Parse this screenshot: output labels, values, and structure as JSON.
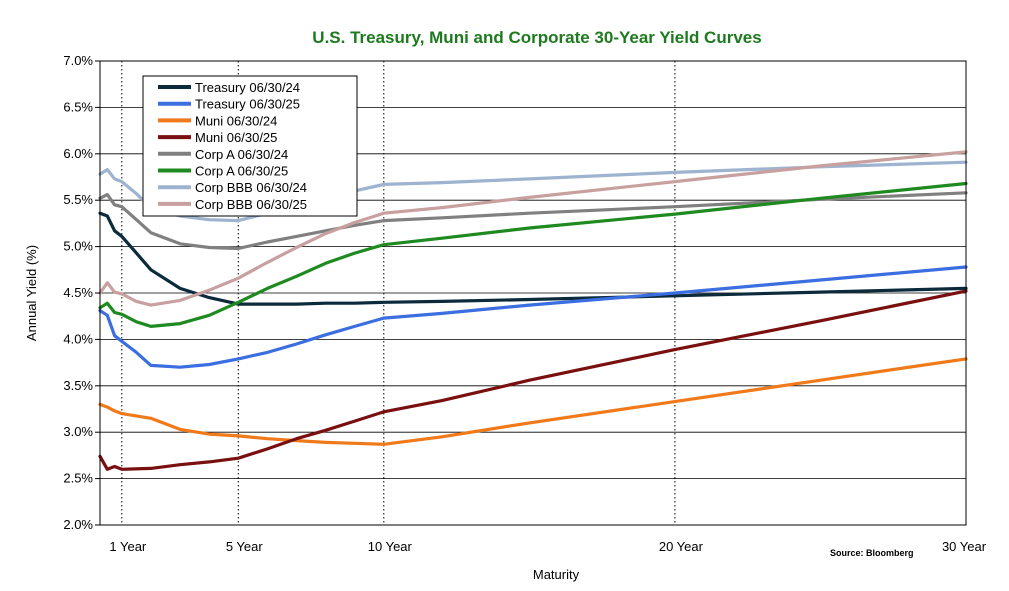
{
  "chart_data": {
    "type": "line",
    "title": "U.S. Treasury, Muni and Corporate 30-Year Yield Curves",
    "xlabel": "Maturity",
    "ylabel": "Annual Yield (%)",
    "source": "Source: Bloomberg",
    "xlim": [
      0.25,
      30
    ],
    "ylim": [
      2.0,
      7.0
    ],
    "x_ticks": [
      {
        "value": 1,
        "label": "1 Year"
      },
      {
        "value": 5,
        "label": "5 Year"
      },
      {
        "value": 10,
        "label": "10 Year"
      },
      {
        "value": 20,
        "label": "20 Year"
      },
      {
        "value": 30,
        "label": "30 Year"
      }
    ],
    "y_ticks": [
      {
        "value": 2.0,
        "label": "2.0%"
      },
      {
        "value": 2.5,
        "label": "2.5%"
      },
      {
        "value": 3.0,
        "label": "3.0%"
      },
      {
        "value": 3.5,
        "label": "3.5%"
      },
      {
        "value": 4.0,
        "label": "4.0%"
      },
      {
        "value": 4.5,
        "label": "4.5%"
      },
      {
        "value": 5.0,
        "label": "5.0%"
      },
      {
        "value": 5.5,
        "label": "5.5%"
      },
      {
        "value": 6.0,
        "label": "6.0%"
      },
      {
        "value": 6.5,
        "label": "6.5%"
      },
      {
        "value": 7.0,
        "label": "7.0%"
      }
    ],
    "vertical_gridlines_at": [
      1,
      5,
      10,
      20
    ],
    "legend_position": "top-left",
    "series": [
      {
        "name": "Treasury 06/30/24",
        "color": "#0b2a3c",
        "x": [
          0.25,
          0.5,
          0.75,
          1,
          1.5,
          2,
          3,
          4,
          5,
          6,
          7,
          8,
          9,
          10,
          12,
          15,
          20,
          25,
          30
        ],
        "y": [
          5.36,
          5.33,
          5.17,
          5.11,
          4.93,
          4.75,
          4.55,
          4.45,
          4.38,
          4.38,
          4.38,
          4.39,
          4.39,
          4.4,
          4.41,
          4.43,
          4.47,
          4.51,
          4.55
        ]
      },
      {
        "name": "Treasury 06/30/25",
        "color": "#3b6ee0",
        "x": [
          0.25,
          0.5,
          0.75,
          1,
          1.5,
          2,
          3,
          4,
          5,
          6,
          7,
          8,
          9,
          10,
          12,
          15,
          20,
          25,
          30
        ],
        "y": [
          4.31,
          4.26,
          4.04,
          3.98,
          3.86,
          3.72,
          3.7,
          3.73,
          3.79,
          3.86,
          3.95,
          4.05,
          4.14,
          4.23,
          4.28,
          4.37,
          4.5,
          4.64,
          4.78
        ]
      },
      {
        "name": "Muni 06/30/24",
        "color": "#f07a1a",
        "x": [
          0.25,
          0.5,
          0.75,
          1,
          2,
          3,
          4,
          5,
          6,
          7,
          8,
          9,
          10,
          12,
          15,
          20,
          25,
          30
        ],
        "y": [
          3.3,
          3.27,
          3.23,
          3.2,
          3.15,
          3.03,
          2.98,
          2.96,
          2.93,
          2.91,
          2.89,
          2.88,
          2.87,
          2.95,
          3.1,
          3.33,
          3.56,
          3.79
        ]
      },
      {
        "name": "Muni 06/30/25",
        "color": "#7a0f0f",
        "x": [
          0.25,
          0.5,
          0.75,
          1,
          2,
          3,
          4,
          5,
          6,
          7,
          8,
          9,
          10,
          12,
          15,
          20,
          25,
          30
        ],
        "y": [
          2.74,
          2.6,
          2.63,
          2.6,
          2.61,
          2.65,
          2.68,
          2.72,
          2.82,
          2.93,
          3.02,
          3.12,
          3.22,
          3.34,
          3.56,
          3.89,
          4.2,
          4.52
        ]
      },
      {
        "name": "Corp A 06/30/24",
        "color": "#808080",
        "x": [
          0.25,
          0.5,
          0.75,
          1,
          1.5,
          2,
          3,
          4,
          5,
          6,
          7,
          8,
          9,
          10,
          12,
          15,
          20,
          25,
          30
        ],
        "y": [
          5.52,
          5.56,
          5.45,
          5.43,
          5.29,
          5.15,
          5.03,
          4.99,
          4.98,
          5.05,
          5.11,
          5.17,
          5.23,
          5.28,
          5.31,
          5.36,
          5.43,
          5.51,
          5.58
        ]
      },
      {
        "name": "Corp A 06/30/25",
        "color": "#1f8a1f",
        "x": [
          0.25,
          0.5,
          0.75,
          1,
          1.5,
          2,
          3,
          4,
          5,
          6,
          7,
          8,
          9,
          10,
          12,
          15,
          20,
          25,
          30
        ],
        "y": [
          4.34,
          4.39,
          4.29,
          4.27,
          4.19,
          4.14,
          4.17,
          4.26,
          4.4,
          4.55,
          4.68,
          4.82,
          4.93,
          5.02,
          5.09,
          5.2,
          5.35,
          5.52,
          5.68
        ]
      },
      {
        "name": "Corp BBB 06/30/24",
        "color": "#9db3cf",
        "x": [
          0.25,
          0.5,
          0.75,
          1,
          1.5,
          2,
          3,
          4,
          5,
          6,
          7,
          8,
          9,
          10,
          12,
          15,
          20,
          25,
          30
        ],
        "y": [
          5.78,
          5.83,
          5.73,
          5.7,
          5.57,
          5.42,
          5.33,
          5.29,
          5.28,
          5.36,
          5.45,
          5.53,
          5.6,
          5.67,
          5.69,
          5.73,
          5.8,
          5.86,
          5.91
        ]
      },
      {
        "name": "Corp BBB 06/30/25",
        "color": "#c8a0a0",
        "x": [
          0.25,
          0.5,
          0.75,
          1,
          1.5,
          2,
          3,
          4,
          5,
          6,
          7,
          8,
          9,
          10,
          12,
          15,
          20,
          25,
          30
        ],
        "y": [
          4.5,
          4.61,
          4.51,
          4.49,
          4.41,
          4.37,
          4.42,
          4.53,
          4.66,
          4.83,
          4.99,
          5.14,
          5.26,
          5.36,
          5.42,
          5.53,
          5.7,
          5.87,
          6.02
        ]
      }
    ]
  }
}
